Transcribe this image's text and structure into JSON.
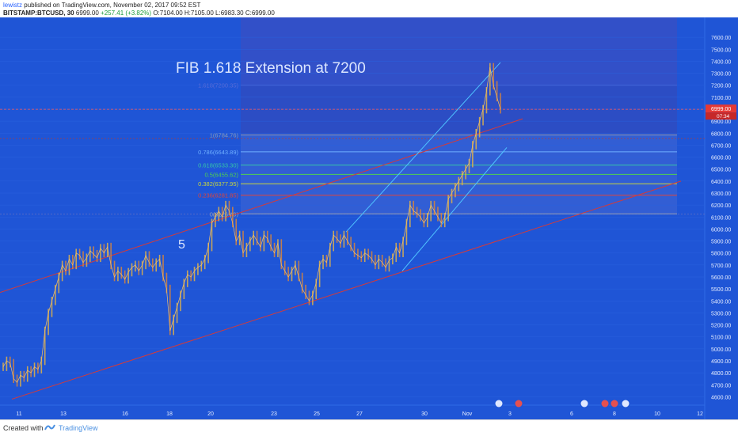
{
  "header": {
    "author": "lewistz",
    "published_text": "published on TradingView.com, November 02, 2017 09:52 EST",
    "symbol": "BITSTAMP:BTCUSD, 30",
    "last": "6999.00",
    "change": "+257.41 (+3.82%)",
    "ohlc": "O:7104.00 H:7105.00 L:6983.30 C:6999.00"
  },
  "footer": {
    "created_with": "Created with",
    "brand": "TradingView"
  },
  "chart_data": {
    "type": "line",
    "title": "FIB 1.618 Extension at 7200",
    "annotation": "5",
    "ylim": [
      4550,
      7700
    ],
    "y_ticks": [
      "7600.00",
      "7500.00",
      "7400.00",
      "7300.00",
      "7200.00",
      "7100.00",
      "7000.00",
      "6900.00",
      "6800.00",
      "6700.00",
      "6600.00",
      "6500.00",
      "6400.00",
      "6300.00",
      "6200.00",
      "6100.00",
      "6000.00",
      "5900.00",
      "5800.00",
      "5700.00",
      "5600.00",
      "5500.00",
      "5400.00",
      "5300.00",
      "5200.00",
      "5100.00",
      "5000.00",
      "4900.00",
      "4800.00",
      "4700.00",
      "4600.00"
    ],
    "x_ticks": [
      "11",
      "13",
      "16",
      "18",
      "20",
      "23",
      "25",
      "27",
      "30",
      "Nov",
      "3",
      "6",
      "8",
      "10",
      "12"
    ],
    "price_label": "6999.00",
    "countdown_label": "07:34",
    "fib_levels": [
      {
        "label": "1.618(7200.35)",
        "value": 7200.35,
        "color": "#5b6cd6"
      },
      {
        "label": "1(6784.76)",
        "value": 6784.76,
        "color": "#8a9bb8"
      },
      {
        "label": "0.786(6643.89)",
        "value": 6643.89,
        "color": "#6fb0ff"
      },
      {
        "label": "0.618(6533.30)",
        "value": 6533.3,
        "color": "#35c6a8"
      },
      {
        "label": "0.5(6455.62)",
        "value": 6455.62,
        "color": "#4fd14f"
      },
      {
        "label": "0.382(6377.95)",
        "value": 6377.95,
        "color": "#c8d63c"
      },
      {
        "label": "0.236(6281.85)",
        "value": 6281.85,
        "color": "#e0453a"
      },
      {
        "label": "0(6126.49)",
        "value": 6126.49,
        "color": "#9aa3b3"
      }
    ],
    "series": [
      {
        "values": [
          4850,
          4900,
          4880,
          4750,
          4720,
          4780,
          4760,
          4820,
          4800,
          4850,
          4830,
          4900,
          5150,
          5300,
          5400,
          5500,
          5600,
          5700,
          5650,
          5750,
          5700,
          5800,
          5780,
          5720,
          5760,
          5820,
          5790,
          5760,
          5840,
          5800,
          5850,
          5700,
          5600,
          5650,
          5620,
          5580,
          5640,
          5680,
          5700,
          5650,
          5700,
          5780,
          5720,
          5680,
          5720,
          5750,
          5600,
          5500,
          5150,
          5250,
          5350,
          5450,
          5550,
          5620,
          5600,
          5650,
          5680,
          5700,
          5750,
          5850,
          6050,
          6100,
          6150,
          6100,
          6200,
          6150,
          6050,
          5900,
          5950,
          5800,
          5850,
          5900,
          5950,
          5900,
          5850,
          5950,
          5920,
          5850,
          5800,
          5880,
          5700,
          5650,
          5600,
          5650,
          5700,
          5600,
          5500,
          5450,
          5400,
          5450,
          5550,
          5700,
          5750,
          5720,
          5850,
          5950,
          5920,
          5880,
          5950,
          5900,
          5850,
          5800,
          5780,
          5760,
          5800,
          5780,
          5750,
          5700,
          5750,
          5720,
          5680,
          5740,
          5760,
          5850,
          5800,
          5900,
          6050,
          6200,
          6150,
          6130,
          6100,
          6050,
          6100,
          6200,
          6150,
          6100,
          6050,
          6100,
          6250,
          6300,
          6350,
          6400,
          6450,
          6500,
          6550,
          6700,
          6800,
          6900,
          7000,
          7150,
          7350,
          7200,
          7100,
          6999
        ]
      }
    ]
  }
}
